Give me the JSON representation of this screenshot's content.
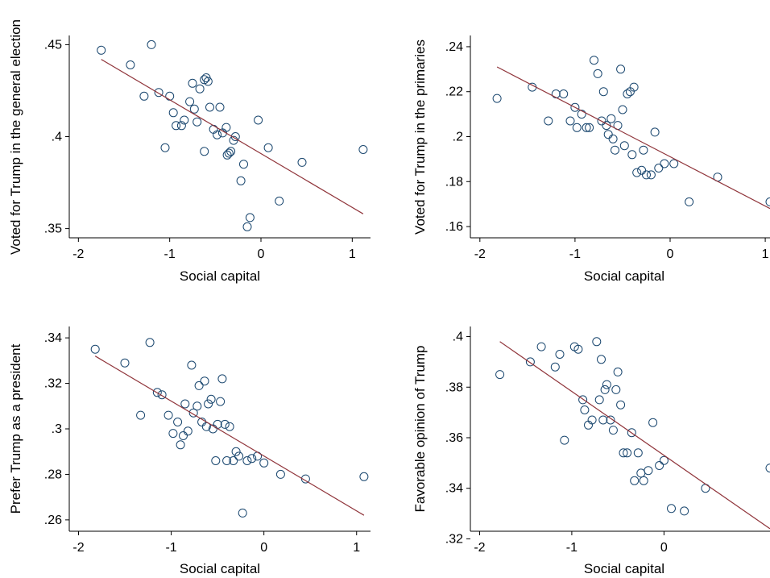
{
  "colors": {
    "marker": "#1a476f",
    "fit_line": "#90353b",
    "axis": "#000000",
    "background": "#ffffff"
  },
  "chart_data": [
    {
      "type": "scatter",
      "title": "",
      "xlabel": "Social capital",
      "ylabel": "Voted for Trump in the general election",
      "xlim": [
        -2.1,
        1.2
      ],
      "ylim": [
        0.345,
        0.455
      ],
      "xticks": [
        -2,
        -1,
        0,
        1
      ],
      "xtick_labels": [
        "-2",
        "-1",
        "0",
        "1"
      ],
      "yticks": [
        0.35,
        0.4,
        0.45
      ],
      "ytick_labels": [
        ".35",
        ".4",
        ".45"
      ],
      "grid": false,
      "legend": "none",
      "series": [
        {
          "x": [
            -1.75,
            -1.43,
            -1.2,
            -1.28,
            -1.12,
            -1.0,
            -0.96,
            -0.93,
            -0.87,
            -0.84,
            -1.05,
            -0.78,
            -0.75,
            -0.73,
            -0.67,
            -0.7,
            -0.62,
            -0.6,
            -0.58,
            -0.56,
            -0.62,
            -0.52,
            -0.48,
            -0.45,
            -0.42,
            -0.38,
            -0.35,
            -0.33,
            -0.3,
            -0.28,
            -0.37,
            -0.22,
            -0.15,
            -0.12,
            -0.03,
            0.08,
            -0.19,
            0.2,
            0.45,
            1.12
          ],
          "y": [
            0.447,
            0.439,
            0.45,
            0.422,
            0.424,
            0.422,
            0.413,
            0.406,
            0.406,
            0.409,
            0.394,
            0.419,
            0.429,
            0.415,
            0.426,
            0.408,
            0.431,
            0.432,
            0.43,
            0.416,
            0.392,
            0.404,
            0.401,
            0.416,
            0.402,
            0.405,
            0.391,
            0.392,
            0.398,
            0.4,
            0.39,
            0.376,
            0.351,
            0.356,
            0.409,
            0.394,
            0.385,
            0.365,
            0.386,
            0.393
          ]
        }
      ],
      "fit_line": {
        "x": [
          -1.75,
          1.12
        ],
        "y": [
          0.442,
          0.358
        ]
      }
    },
    {
      "type": "scatter",
      "title": "",
      "xlabel": "Social capital",
      "ylabel": "Voted for Trump in the primaries",
      "xlim": [
        -2.1,
        1.05
      ],
      "ylim": [
        0.155,
        0.245
      ],
      "xticks": [
        -2,
        -1,
        0,
        1
      ],
      "xtick_labels": [
        "-2",
        "-1",
        "0",
        "1"
      ],
      "yticks": [
        0.16,
        0.18,
        0.2,
        0.22,
        0.24
      ],
      "ytick_labels": [
        ".16",
        ".18",
        ".2",
        ".22",
        ".24"
      ],
      "grid": false,
      "legend": "none",
      "series": [
        {
          "x": [
            -1.82,
            -1.45,
            -1.2,
            -1.12,
            -1.28,
            -1.05,
            -1.0,
            -0.98,
            -0.93,
            -0.88,
            -0.85,
            -0.8,
            -0.76,
            -0.72,
            -0.7,
            -0.67,
            -0.65,
            -0.62,
            -0.6,
            -0.58,
            -0.55,
            -0.52,
            -0.5,
            -0.48,
            -0.45,
            -0.42,
            -0.4,
            -0.38,
            -0.35,
            -0.3,
            -0.28,
            -0.25,
            -0.2,
            -0.16,
            -0.12,
            -0.06,
            0.04,
            0.2,
            0.5,
            1.05
          ],
          "y": [
            0.217,
            0.222,
            0.219,
            0.219,
            0.207,
            0.207,
            0.213,
            0.204,
            0.21,
            0.204,
            0.204,
            0.234,
            0.228,
            0.207,
            0.22,
            0.205,
            0.201,
            0.208,
            0.199,
            0.194,
            0.205,
            0.23,
            0.212,
            0.196,
            0.219,
            0.22,
            0.192,
            0.222,
            0.184,
            0.185,
            0.194,
            0.183,
            0.183,
            0.202,
            0.186,
            0.188,
            0.188,
            0.171,
            0.182,
            0.171
          ]
        }
      ],
      "fit_line": {
        "x": [
          -1.82,
          1.05
        ],
        "y": [
          0.231,
          0.168
        ]
      }
    },
    {
      "type": "scatter",
      "title": "",
      "xlabel": "Social capital",
      "ylabel": "Prefer Trump as a president",
      "xlim": [
        -2.1,
        1.15
      ],
      "ylim": [
        0.255,
        0.345
      ],
      "xticks": [
        -2,
        -1,
        0,
        1
      ],
      "xtick_labels": [
        "-2",
        "-1",
        "0",
        "1"
      ],
      "yticks": [
        0.26,
        0.28,
        0.3,
        0.32,
        0.34
      ],
      "ytick_labels": [
        ".26",
        ".28",
        ".3",
        ".32",
        ".34"
      ],
      "grid": false,
      "legend": "none",
      "series": [
        {
          "x": [
            -1.82,
            -1.5,
            -1.23,
            -1.33,
            -1.15,
            -1.1,
            -1.03,
            -0.98,
            -0.93,
            -0.9,
            -0.87,
            -0.85,
            -0.82,
            -0.78,
            -0.76,
            -0.72,
            -0.7,
            -0.67,
            -0.64,
            -0.62,
            -0.6,
            -0.57,
            -0.55,
            -0.52,
            -0.5,
            -0.47,
            -0.45,
            -0.42,
            -0.4,
            -0.37,
            -0.33,
            -0.3,
            -0.27,
            -0.23,
            -0.18,
            -0.13,
            -0.07,
            0.0,
            0.18,
            0.45,
            1.08
          ],
          "y": [
            0.335,
            0.329,
            0.338,
            0.306,
            0.316,
            0.315,
            0.306,
            0.298,
            0.303,
            0.293,
            0.297,
            0.311,
            0.299,
            0.328,
            0.307,
            0.31,
            0.319,
            0.303,
            0.321,
            0.301,
            0.311,
            0.313,
            0.3,
            0.286,
            0.302,
            0.312,
            0.322,
            0.302,
            0.286,
            0.301,
            0.286,
            0.29,
            0.288,
            0.263,
            0.286,
            0.287,
            0.288,
            0.285,
            0.28,
            0.278,
            0.279
          ]
        }
      ],
      "fit_line": {
        "x": [
          -1.82,
          1.08
        ],
        "y": [
          0.332,
          0.262
        ]
      }
    },
    {
      "type": "scatter",
      "title": "",
      "xlabel": "Social capital",
      "ylabel": "Favorable opinion of Trump",
      "xlim": [
        -2.1,
        1.15
      ],
      "ylim": [
        0.323,
        0.404
      ],
      "xticks": [
        -2,
        -1,
        0
      ],
      "xtick_labels": [
        "-2",
        "-1",
        "0"
      ],
      "yticks": [
        0.32,
        0.34,
        0.36,
        0.38,
        0.4
      ],
      "ytick_labels": [
        ".32",
        ".34",
        ".36",
        ".38",
        ".4"
      ],
      "grid": false,
      "legend": "none",
      "series": [
        {
          "x": [
            -1.78,
            -1.45,
            -1.33,
            -1.18,
            -1.13,
            -1.08,
            -0.97,
            -0.93,
            -0.88,
            -0.86,
            -0.82,
            -0.78,
            -0.73,
            -0.7,
            -0.68,
            -0.66,
            -0.64,
            -0.62,
            -0.58,
            -0.55,
            -0.52,
            -0.5,
            -0.47,
            -0.44,
            -0.4,
            -0.35,
            -0.32,
            -0.28,
            -0.25,
            -0.22,
            -0.17,
            -0.12,
            -0.05,
            0.0,
            0.08,
            0.22,
            0.45,
            1.15
          ],
          "y": [
            0.385,
            0.39,
            0.396,
            0.388,
            0.393,
            0.359,
            0.396,
            0.395,
            0.375,
            0.371,
            0.365,
            0.367,
            0.398,
            0.375,
            0.391,
            0.367,
            0.379,
            0.381,
            0.367,
            0.363,
            0.379,
            0.386,
            0.373,
            0.354,
            0.354,
            0.362,
            0.343,
            0.354,
            0.346,
            0.343,
            0.347,
            0.366,
            0.349,
            0.351,
            0.332,
            0.331,
            0.34,
            0.348
          ]
        }
      ],
      "fit_line": {
        "x": [
          -1.78,
          1.15
        ],
        "y": [
          0.398,
          0.324
        ]
      }
    }
  ]
}
